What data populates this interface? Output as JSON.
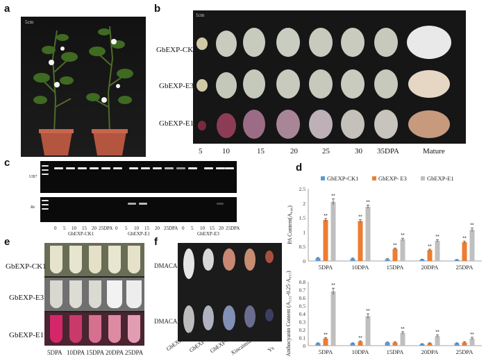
{
  "panels": {
    "a": "a",
    "b": "b",
    "c": "c",
    "d": "d",
    "e": "e",
    "f": "f"
  },
  "panel_a": {
    "scale": "5cm"
  },
  "panel_b": {
    "scale": "1cm",
    "rows": [
      "GbEXP-CK1",
      "GbEXP-E3",
      "GbEXP-E1"
    ],
    "days": [
      "5",
      "10",
      "15",
      "20",
      "25",
      "30",
      "35DPA",
      "Mature"
    ]
  },
  "panel_c": {
    "gene_top": "UB7",
    "gene_bottom": "Re",
    "lane_labels": [
      "0",
      "5",
      "10",
      "15",
      "20",
      "25DPA"
    ],
    "groups": [
      "GbEXP-CK1",
      "GbEXP-E1",
      "GbEXP-E3"
    ]
  },
  "panel_e": {
    "rows": [
      "GbEXP-CK1",
      "GbEXP-E3",
      "GbEXP-E1"
    ],
    "days": [
      "5DPA",
      "10DPA",
      "15DPA",
      "20DPA",
      "25DPA"
    ]
  },
  "panel_f": {
    "rows": [
      "DMACA-",
      "DMACA+"
    ],
    "samples": [
      "GbEXP-CK1",
      "GbEXP-E3",
      "GbEXP-E1",
      "Xincaimian1",
      "Ys"
    ]
  },
  "colors": {
    "ck1": "#5b9bd5",
    "e3": "#ed7d31",
    "e1": "#bfbfbf"
  },
  "chart_data": [
    {
      "type": "bar",
      "legend": [
        "GbEXP-CK1",
        "GbEXP- E3",
        "GbEXP-E1"
      ],
      "categories": [
        "5DPA",
        "10DPA",
        "15DPA",
        "20DPA",
        "25DPA"
      ],
      "series": [
        {
          "name": "GbEXP-CK1",
          "values": [
            0.1,
            0.08,
            0.06,
            0.05,
            0.04
          ]
        },
        {
          "name": "GbEXP- E3",
          "values": [
            1.42,
            1.38,
            0.42,
            0.38,
            0.65
          ]
        },
        {
          "name": "GbEXP-E1",
          "values": [
            2.05,
            1.88,
            0.75,
            0.7,
            1.08
          ]
        }
      ],
      "errors": [
        [
          0.02,
          0.02,
          0.02,
          0.01,
          0.01
        ],
        [
          0.05,
          0.05,
          0.03,
          0.03,
          0.04
        ],
        [
          0.1,
          0.06,
          0.04,
          0.04,
          0.06
        ]
      ],
      "sig": [
        [
          "",
          "",
          ""
        ],
        [
          "**",
          "**"
        ],
        [
          "**",
          "**"
        ],
        [
          "**",
          "**"
        ],
        [
          "**",
          "**"
        ]
      ],
      "ylabel": "PA Content(A₆₄₀)",
      "yticks": [
        "0",
        "0.5",
        "1",
        "1.5",
        "2",
        "2.5"
      ],
      "ylim": [
        0,
        2.5
      ]
    },
    {
      "type": "bar",
      "categories": [
        "5DPA",
        "10DPA",
        "15DPA",
        "20DPA",
        "25DPA"
      ],
      "series": [
        {
          "name": "GbEXP-CK1",
          "values": [
            0.03,
            0.03,
            0.04,
            0.02,
            0.03
          ]
        },
        {
          "name": "GbEXP- E3",
          "values": [
            0.09,
            0.05,
            0.04,
            0.03,
            0.04
          ]
        },
        {
          "name": "GbEXP-E1",
          "values": [
            0.68,
            0.37,
            0.16,
            0.12,
            0.09
          ]
        }
      ],
      "errors": [
        [
          0.005,
          0.005,
          0.005,
          0.005,
          0.005
        ],
        [
          0.01,
          0.01,
          0.01,
          0.005,
          0.01
        ],
        [
          0.04,
          0.03,
          0.015,
          0.015,
          0.015
        ]
      ],
      "ylabel": "Anthocyanin Content (A₅₃₃-0.25·A₆₅₇)",
      "yticks": [
        "0",
        "0.1",
        "0.2",
        "0.3",
        "0.4",
        "0.5",
        "0.6",
        "0.7",
        "0.8"
      ],
      "ylim": [
        0,
        0.8
      ]
    }
  ]
}
